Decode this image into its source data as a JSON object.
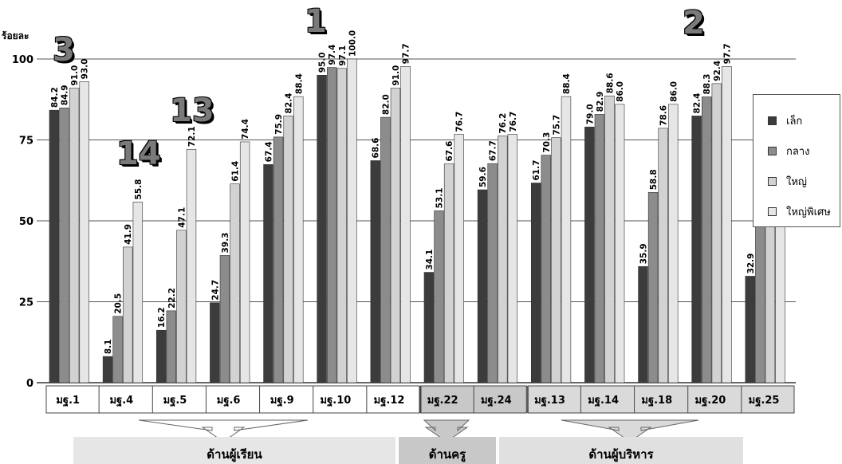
{
  "unit_label": "ร้อยละ",
  "legend": [
    {
      "label": "เล็ก",
      "color": "#3c3c3c"
    },
    {
      "label": "กลาง",
      "color": "#8c8c8c"
    },
    {
      "label": "ใหญ่",
      "color": "#d2d2d2"
    },
    {
      "label": "ใหญ่พิเศษ",
      "color": "#e6e6e6"
    }
  ],
  "groups": [
    {
      "label": "ด้านผู้เรียน",
      "color": "#e6e6e6"
    },
    {
      "label": "ด้านครู",
      "color": "#c8c8c8"
    },
    {
      "label": "ด้านผู้บริหาร",
      "color": "#e0e0e0"
    }
  ],
  "rank_badges": [
    "3",
    "14",
    "13",
    "1",
    "2"
  ],
  "chart_data": {
    "type": "bar",
    "categories": [
      "มฐ.1",
      "มฐ.4",
      "มฐ.5",
      "มฐ.6",
      "มฐ.9",
      "มฐ.10",
      "มฐ.12",
      "มฐ.22",
      "มฐ.24",
      "มฐ.13",
      "มฐ.14",
      "มฐ.18",
      "มฐ.20",
      "มฐ.25"
    ],
    "series": [
      {
        "name": "เล็ก",
        "values": [
          84.2,
          8.1,
          16.2,
          24.7,
          67.4,
          95.0,
          68.6,
          34.1,
          59.6,
          61.7,
          79.0,
          35.9,
          82.4,
          32.9
        ]
      },
      {
        "name": "กลาง",
        "values": [
          84.9,
          20.5,
          22.2,
          39.3,
          75.9,
          97.4,
          82.0,
          53.1,
          67.7,
          70.3,
          82.9,
          58.8,
          88.3,
          51.7
        ]
      },
      {
        "name": "ใหญ่",
        "values": [
          91.0,
          41.9,
          47.1,
          61.4,
          82.4,
          97.1,
          91.0,
          67.6,
          76.2,
          75.7,
          88.6,
          78.6,
          92.4,
          73.3
        ]
      },
      {
        "name": "ใหญ่พิเศษ",
        "values": [
          93.0,
          55.8,
          72.1,
          74.4,
          88.4,
          100.0,
          97.7,
          76.7,
          76.7,
          88.4,
          86.0,
          86.0,
          97.7,
          74.4
        ]
      }
    ],
    "value_labels": [
      [
        "84.2",
        "8.1",
        "16.2",
        "24.7",
        "67.4",
        "95.0",
        "68.6",
        "34.1",
        "59.6",
        "61.7",
        "79.0",
        "35.9",
        "82.4",
        "32.9"
      ],
      [
        "84.9",
        "20.5",
        "22.2",
        "39.3",
        "75.9",
        "97.4",
        "82.0",
        "53.1",
        "67.7",
        "70.3",
        "82.9",
        "58.8",
        "88.3",
        "51.7"
      ],
      [
        "91.0",
        "41.9",
        "47.1",
        "61.4",
        "82.4",
        "97.1",
        "91.0",
        "67.6",
        "76.2",
        "75.7",
        "88.6",
        "78.6",
        "92.4",
        "73.3"
      ],
      [
        "93.0",
        "55.8",
        "72.1",
        "74.4",
        "88.4",
        "100.0",
        "97.7",
        "76.7",
        "76.7",
        "88.4",
        "86.0",
        "86.0",
        "97.7",
        "74.4"
      ]
    ],
    "yticks": [
      "0",
      "25",
      "50",
      "75",
      "100"
    ],
    "ylim": [
      0,
      100
    ],
    "grid": true,
    "legend_position": "right"
  }
}
